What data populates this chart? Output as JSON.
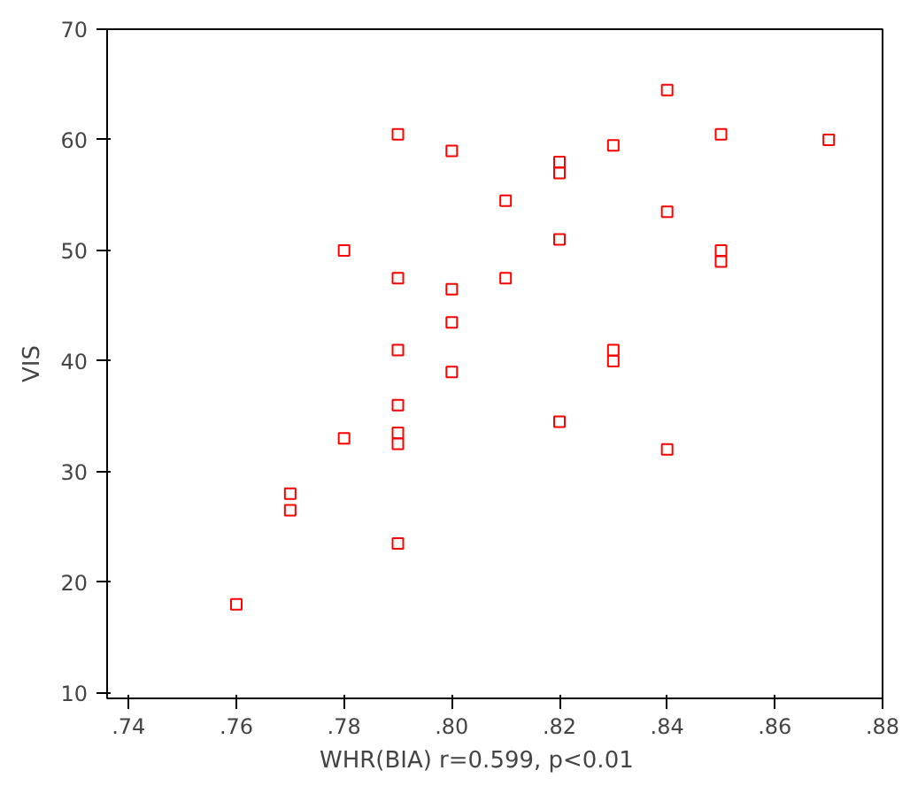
{
  "chart_data": {
    "type": "scatter",
    "xlabel": "WHR(BIA)      r=0.599, p<0.01",
    "ylabel": "VIS",
    "marker": "square",
    "grid": false,
    "xlim": [
      0.736,
      0.88
    ],
    "ylim": [
      9.5,
      70
    ],
    "xticks": [
      {
        "value": 0.74,
        "label": ".74"
      },
      {
        "value": 0.76,
        "label": ".76"
      },
      {
        "value": 0.78,
        "label": ".78"
      },
      {
        "value": 0.8,
        "label": ".80"
      },
      {
        "value": 0.82,
        "label": ".82"
      },
      {
        "value": 0.84,
        "label": ".84"
      },
      {
        "value": 0.86,
        "label": ".86"
      },
      {
        "value": 0.88,
        "label": ".88"
      }
    ],
    "yticks": [
      10,
      20,
      30,
      40,
      50,
      60,
      70
    ],
    "series": [
      {
        "color": "#ff0000",
        "x": [
          0.76,
          0.77,
          0.77,
          0.78,
          0.78,
          0.79,
          0.79,
          0.79,
          0.79,
          0.79,
          0.79,
          0.79,
          0.8,
          0.8,
          0.8,
          0.8,
          0.81,
          0.81,
          0.82,
          0.82,
          0.82,
          0.82,
          0.83,
          0.83,
          0.83,
          0.84,
          0.84,
          0.84,
          0.85,
          0.85,
          0.85,
          0.87
        ],
        "values": [
          18,
          28,
          26.5,
          33,
          50,
          60.5,
          47.5,
          41,
          36,
          33.5,
          32.5,
          23.5,
          59,
          46.5,
          43.5,
          39,
          54.5,
          47.5,
          58,
          57,
          51,
          34.5,
          59.5,
          41,
          40,
          64.5,
          53.5,
          32,
          60.5,
          50,
          49,
          60
        ]
      }
    ]
  }
}
